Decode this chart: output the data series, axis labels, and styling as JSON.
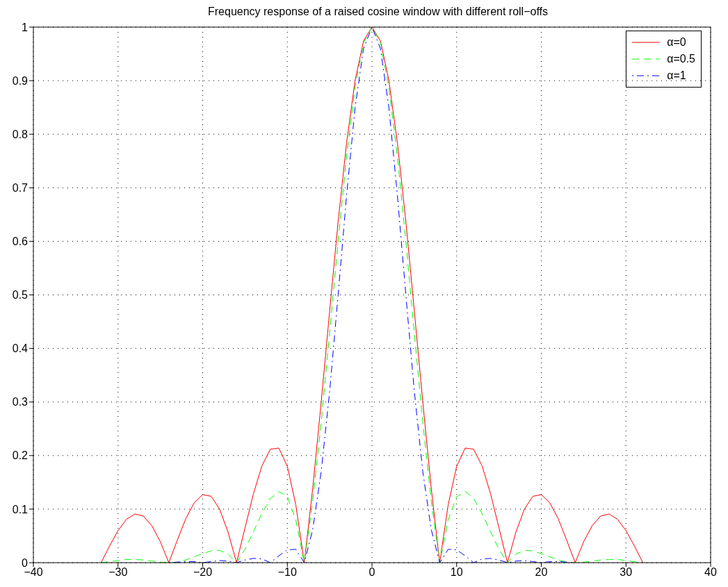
{
  "chart_data": {
    "type": "line",
    "title": "Frequency response of a raised cosine window with different roll−offs",
    "x": [
      -32,
      -31,
      -30,
      -29,
      -28,
      -27,
      -26,
      -25,
      -24,
      -23,
      -22,
      -21,
      -20,
      -19,
      -18,
      -17,
      -16,
      -15,
      -14,
      -13,
      -12,
      -11,
      -10,
      -9,
      -8,
      -7,
      -6,
      -5,
      -4,
      -3,
      -2,
      -1,
      0,
      1,
      2,
      3,
      4,
      5,
      6,
      7,
      8,
      9,
      10,
      11,
      12,
      13,
      14,
      15,
      16,
      17,
      18,
      19,
      20,
      21,
      22,
      23,
      24,
      25,
      26,
      27,
      28,
      29,
      30,
      31,
      32
    ],
    "series": [
      {
        "name": "α=0",
        "color": "#ff0000",
        "line_style": "solid",
        "values": [
          0,
          0.031,
          0.06,
          0.081,
          0.091,
          0.087,
          0.069,
          0.039,
          0,
          0.042,
          0.082,
          0.112,
          0.127,
          0.124,
          0.1,
          0.057,
          0,
          0.065,
          0.129,
          0.181,
          0.212,
          0.214,
          0.18,
          0.108,
          0,
          0.139,
          0.3,
          0.47,
          0.637,
          0.784,
          0.9,
          0.974,
          1,
          0.974,
          0.9,
          0.784,
          0.637,
          0.47,
          0.3,
          0.139,
          0,
          0.108,
          0.18,
          0.214,
          0.212,
          0.181,
          0.129,
          0.065,
          0,
          0.057,
          0.1,
          0.124,
          0.127,
          0.112,
          0.082,
          0.042,
          0,
          0.039,
          0.069,
          0.087,
          0.091,
          0.081,
          0.06,
          0.031,
          0
        ]
      },
      {
        "name": "α=0.5",
        "color": "#00ff00",
        "line_style": "dashed",
        "values": [
          0,
          0.002,
          0.004,
          0.006,
          0.006,
          0.005,
          0.003,
          0.001,
          0,
          0.001,
          0.005,
          0.011,
          0.017,
          0.022,
          0.023,
          0.016,
          0,
          0.025,
          0.058,
          0.092,
          0.12,
          0.133,
          0.123,
          0.08,
          0,
          0.116,
          0.262,
          0.429,
          0.6,
          0.759,
          0.887,
          0.971,
          1,
          0.971,
          0.887,
          0.759,
          0.6,
          0.429,
          0.262,
          0.116,
          0,
          0.08,
          0.123,
          0.133,
          0.12,
          0.092,
          0.058,
          0.025,
          0,
          0.016,
          0.023,
          0.022,
          0.017,
          0.011,
          0.005,
          0.001,
          0,
          0.001,
          0.003,
          0.005,
          0.006,
          0.006,
          0.004,
          0.002,
          0
        ]
      },
      {
        "name": "α=1",
        "color": "#0000ff",
        "line_style": "dotted",
        "values": [
          null,
          null,
          null,
          null,
          null,
          null,
          null,
          null,
          0,
          0.001,
          0.002,
          0.002,
          0,
          0.002,
          0.004,
          0.003,
          0,
          0.005,
          0.008,
          0.007,
          0,
          0.013,
          0.024,
          0.025,
          0,
          0.062,
          0.17,
          0.32,
          0.5,
          0.686,
          0.849,
          0.96,
          1,
          0.96,
          0.849,
          0.686,
          0.5,
          0.32,
          0.17,
          0.062,
          0,
          0.025,
          0.024,
          0.013,
          0,
          0.007,
          0.008,
          0.005,
          0,
          0.003,
          0.004,
          0.002,
          0,
          0.002,
          0.002,
          0.001,
          0,
          null,
          null,
          null,
          null,
          null,
          null,
          null,
          null
        ]
      }
    ],
    "xlim": [
      -40,
      40
    ],
    "xticks": [
      {
        "value": -40,
        "label": "−40"
      },
      {
        "value": -30,
        "label": "−30"
      },
      {
        "value": -20,
        "label": "−20"
      },
      {
        "value": -10,
        "label": "−10"
      },
      0,
      10,
      20,
      30,
      40
    ],
    "ylim": [
      0,
      1
    ],
    "yticks": [
      0,
      0.1,
      0.2,
      0.3,
      0.4,
      0.5,
      0.6,
      0.7,
      0.8,
      0.9,
      1
    ],
    "grid": true,
    "legend": "top right",
    "marker": "none"
  }
}
